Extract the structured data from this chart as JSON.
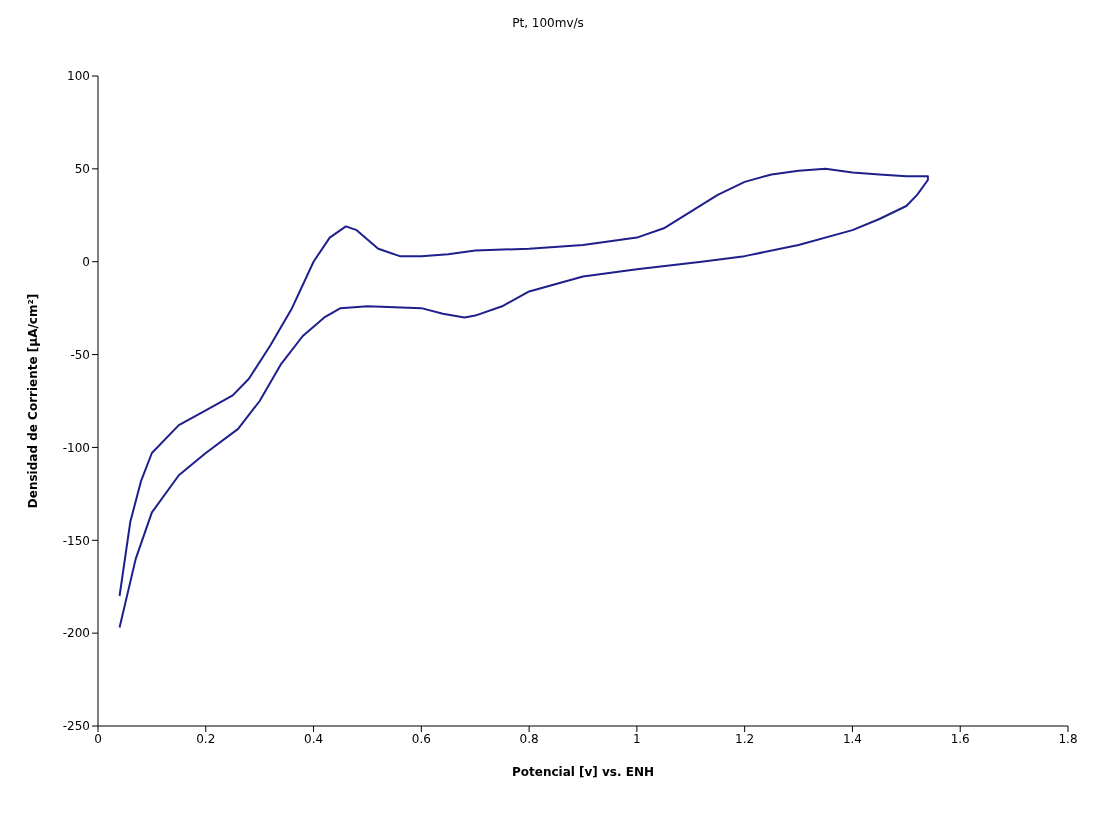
{
  "chart_data": {
    "type": "line",
    "title": "Pt, 100mv/s",
    "xlabel": "Potencial [v] vs. ENH",
    "ylabel": "Densidad de Corriente [µA/cm²]",
    "xlim": [
      0,
      1.8
    ],
    "xticks": [
      0,
      0.2,
      0.4,
      0.6,
      0.8,
      1,
      1.2,
      1.4,
      1.6,
      1.8
    ],
    "ylim": [
      -250,
      100
    ],
    "yticks": [
      -250,
      -200,
      -150,
      -100,
      -50,
      0,
      50,
      100
    ],
    "grid": false,
    "legend": false,
    "marker": "none",
    "line_style": "solid",
    "series": [
      {
        "color": "#1f1f8c",
        "x": [
          0.04,
          0.06,
          0.08,
          0.1,
          0.15,
          0.2,
          0.25,
          0.28,
          0.32,
          0.36,
          0.4,
          0.43,
          0.46,
          0.48,
          0.52,
          0.56,
          0.6,
          0.65,
          0.7,
          0.8,
          0.9,
          1.0,
          1.05,
          1.1,
          1.15,
          1.2,
          1.25,
          1.3,
          1.35,
          1.4,
          1.45,
          1.5,
          1.54,
          1.54,
          1.52,
          1.5,
          1.45,
          1.4,
          1.3,
          1.2,
          1.12,
          1.0,
          0.9,
          0.8,
          0.75,
          0.7,
          0.68,
          0.64,
          0.6,
          0.5,
          0.45,
          0.42,
          0.38,
          0.34,
          0.3,
          0.26,
          0.2,
          0.15,
          0.1,
          0.07,
          0.04
        ],
        "values": [
          -180,
          -140,
          -118,
          -103,
          -88,
          -80,
          -72,
          -63,
          -45,
          -25,
          0,
          13,
          19,
          17,
          7,
          3,
          3,
          4,
          6,
          7,
          9,
          13,
          18,
          27,
          36,
          43,
          47,
          49,
          50,
          48,
          47,
          46,
          46,
          44,
          36,
          30,
          23,
          17,
          9,
          3,
          0,
          -4,
          -8,
          -16,
          -24,
          -29,
          -30,
          -28,
          -25,
          -24,
          -25,
          -30,
          -40,
          -55,
          -75,
          -90,
          -103,
          -115,
          -135,
          -160,
          -197
        ]
      }
    ]
  }
}
